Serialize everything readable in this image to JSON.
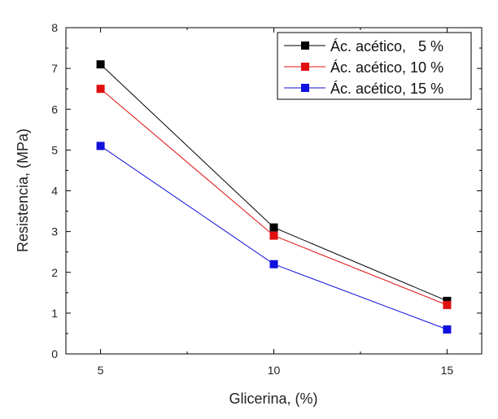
{
  "chart_data": {
    "type": "line",
    "title": "",
    "xlabel": "Glicerina, (%)",
    "ylabel": "Resistencia, (MPa)",
    "x": [
      5,
      10,
      15
    ],
    "x_ticks": [
      "5",
      "10",
      "15"
    ],
    "y_ticks": [
      "0",
      "1",
      "2",
      "3",
      "4",
      "5",
      "6",
      "7",
      "8"
    ],
    "xlim": [
      4,
      16
    ],
    "ylim": [
      0,
      8
    ],
    "grid": false,
    "legend_position": "top-right",
    "series": [
      {
        "name": "Ác. acético,   5 %",
        "values": [
          7.1,
          3.1,
          1.3
        ],
        "color": "#000000",
        "marker": "square"
      },
      {
        "name": "Ác. acético, 10 %",
        "values": [
          6.5,
          2.9,
          1.2
        ],
        "color": "#e01010",
        "marker": "square"
      },
      {
        "name": "Ác. acético, 15 %",
        "values": [
          5.1,
          2.2,
          0.6
        ],
        "color": "#1010e0",
        "marker": "square"
      }
    ]
  }
}
